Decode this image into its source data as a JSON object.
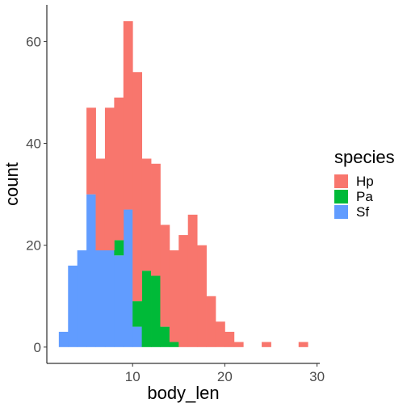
{
  "chart_data": {
    "type": "bar",
    "stacked": true,
    "histogram": true,
    "bin_width": 1,
    "xlabel": "body_len",
    "ylabel": "count",
    "xlim": [
      0.7,
      30.3
    ],
    "ylim": [
      -3.2,
      67.2
    ],
    "x_ticks": [
      10,
      20,
      30
    ],
    "y_ticks": [
      0,
      20,
      40,
      60
    ],
    "grid": false,
    "legend": {
      "title": "species",
      "position": "right"
    },
    "series": [
      {
        "name": "Sf",
        "color": "#619CFF",
        "bins": [
          {
            "x0": 2,
            "x1": 3,
            "count": 3
          },
          {
            "x0": 3,
            "x1": 4,
            "count": 16
          },
          {
            "x0": 4,
            "x1": 5,
            "count": 19
          },
          {
            "x0": 5,
            "x1": 6,
            "count": 30
          },
          {
            "x0": 6,
            "x1": 7,
            "count": 19
          },
          {
            "x0": 7,
            "x1": 8,
            "count": 19
          },
          {
            "x0": 8,
            "x1": 9,
            "count": 18
          },
          {
            "x0": 9,
            "x1": 10,
            "count": 27
          },
          {
            "x0": 10,
            "x1": 11,
            "count": 4
          }
        ]
      },
      {
        "name": "Pa",
        "color": "#00BA38",
        "bins": [
          {
            "x0": 8,
            "x1": 9,
            "count": 3
          },
          {
            "x0": 10,
            "x1": 11,
            "count": 5
          },
          {
            "x0": 11,
            "x1": 12,
            "count": 15
          },
          {
            "x0": 12,
            "x1": 13,
            "count": 14
          },
          {
            "x0": 13,
            "x1": 14,
            "count": 4
          },
          {
            "x0": 14,
            "x1": 15,
            "count": 1
          }
        ]
      },
      {
        "name": "Hp",
        "color": "#F8766D",
        "bins": [
          {
            "x0": 5,
            "x1": 6,
            "count": 17
          },
          {
            "x0": 6,
            "x1": 7,
            "count": 18
          },
          {
            "x0": 7,
            "x1": 8,
            "count": 28
          },
          {
            "x0": 8,
            "x1": 9,
            "count": 28
          },
          {
            "x0": 9,
            "x1": 10,
            "count": 37
          },
          {
            "x0": 10,
            "x1": 11,
            "count": 45
          },
          {
            "x0": 11,
            "x1": 12,
            "count": 22
          },
          {
            "x0": 12,
            "x1": 13,
            "count": 22
          },
          {
            "x0": 13,
            "x1": 14,
            "count": 20
          },
          {
            "x0": 14,
            "x1": 15,
            "count": 18
          },
          {
            "x0": 15,
            "x1": 16,
            "count": 22
          },
          {
            "x0": 16,
            "x1": 17,
            "count": 26
          },
          {
            "x0": 17,
            "x1": 18,
            "count": 20
          },
          {
            "x0": 18,
            "x1": 19,
            "count": 10
          },
          {
            "x0": 19,
            "x1": 20,
            "count": 5
          },
          {
            "x0": 20,
            "x1": 21,
            "count": 3
          },
          {
            "x0": 21,
            "x1": 22,
            "count": 1
          },
          {
            "x0": 24,
            "x1": 25,
            "count": 1
          },
          {
            "x0": 28,
            "x1": 29,
            "count": 1
          }
        ]
      }
    ],
    "stack_order": [
      "Sf",
      "Pa",
      "Hp"
    ],
    "legend_order": [
      "Hp",
      "Pa",
      "Sf"
    ]
  }
}
